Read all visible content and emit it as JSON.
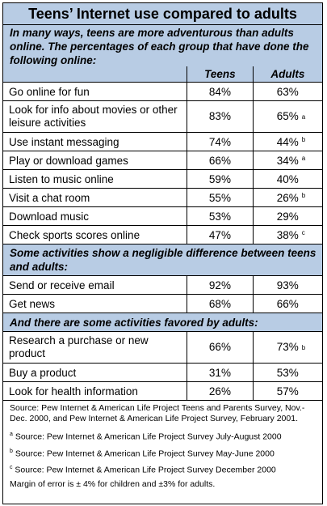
{
  "title": "Teens’ Internet use compared to adults",
  "intro": "In many ways, teens are more adventurous than adults online.  The percentages of each group that have done the following online:",
  "columns": {
    "teens": "Teens",
    "adults": "Adults"
  },
  "section1": [
    {
      "activity": "Go online for fun",
      "teens": "84%",
      "adults": "63%",
      "note": ""
    },
    {
      "activity": "Look for info about movies or other leisure activities",
      "teens": "83%",
      "adults": "65%",
      "note": "a"
    },
    {
      "activity": "Use instant messaging",
      "teens": "74%",
      "adults": "44%",
      "note": "b"
    },
    {
      "activity": "Play or download games",
      "teens": "66%",
      "adults": "34%",
      "note": "a"
    },
    {
      "activity": "Listen to music online",
      "teens": "59%",
      "adults": "40%",
      "note": ""
    },
    {
      "activity": "Visit a chat room",
      "teens": "55%",
      "adults": "26%",
      "note": "b"
    },
    {
      "activity": "Download music",
      "teens": "53%",
      "adults": "29%",
      "note": ""
    },
    {
      "activity": "Check sports scores online",
      "teens": "47%",
      "adults": "38%",
      "note": "c"
    }
  ],
  "section2_heading": "Some activities show a negligible difference between teens and adults:",
  "section2": [
    {
      "activity": "Send or receive email",
      "teens": "92%",
      "adults": "93%",
      "note": ""
    },
    {
      "activity": "Get news",
      "teens": "68%",
      "adults": "66%",
      "note": ""
    }
  ],
  "section3_heading": "And there are some activities favored by adults:",
  "section3": [
    {
      "activity": "Research a purchase or new product",
      "teens": "66%",
      "adults": "73%",
      "note": "b"
    },
    {
      "activity": "Buy a product",
      "teens": "31%",
      "adults": "53%",
      "note": ""
    },
    {
      "activity": "Look for health information",
      "teens": "26%",
      "adults": "57%",
      "note": ""
    }
  ],
  "source": "Source: Pew Internet & American Life Project Teens and Parents Survey, Nov.-Dec. 2000, and Pew Internet & American Life Project Survey, February 2001.",
  "footnotes": [
    {
      "mark": "a",
      "text": " Source: Pew Internet & American Life Project Survey July-August 2000"
    },
    {
      "mark": "b",
      "text": " Source: Pew Internet & American Life Project Survey May-June 2000"
    },
    {
      "mark": "c",
      "text": " Source: Pew Internet & American Life Project Survey December 2000"
    }
  ],
  "margin": "Margin of error is ± 4% for children and ±3% for adults."
}
